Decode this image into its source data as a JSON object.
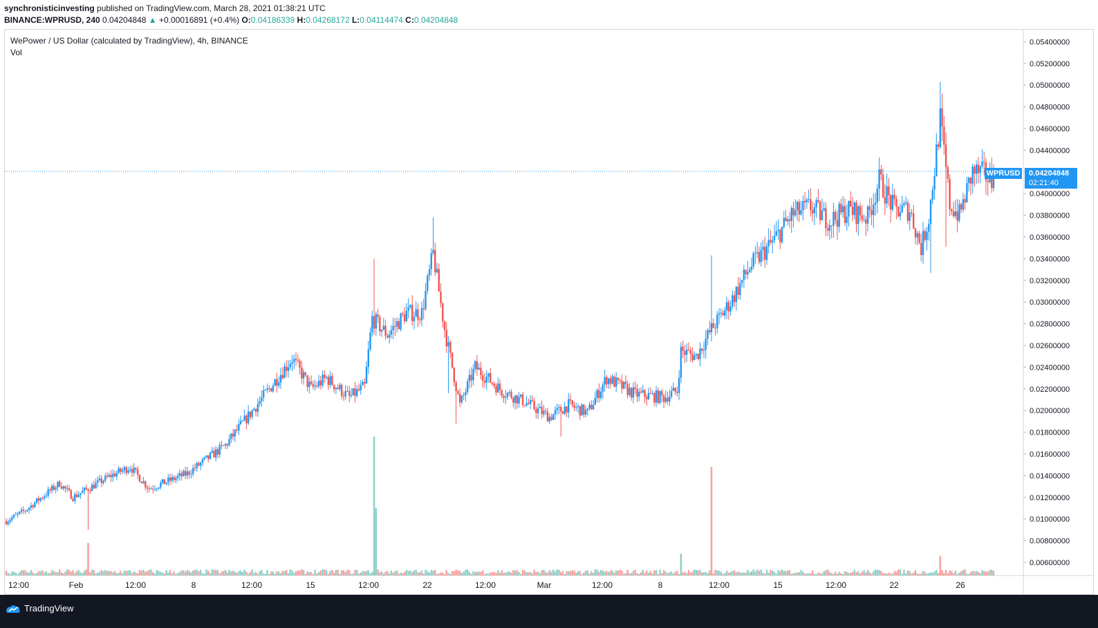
{
  "header": {
    "author": "synchronisticinvesting",
    "published_text": " published on TradingView.com, March 28, 2021 01:38:21 UTC",
    "symbol": "BINANCE:WPRUSD, 240",
    "last": "0.04204848",
    "change": "+0.00016891 (+0.4%)",
    "change_arrow": "▲",
    "o_label": "O:",
    "o_value": "0.04186339",
    "h_label": "H:",
    "h_value": "0.04268172",
    "l_label": "L:",
    "l_value": "0.04114474",
    "c_label": "C:",
    "c_value": "0.04204848"
  },
  "legend": {
    "title": "WePower / US Dollar (calculated by TradingView), 4h, BINANCE",
    "vol": "Vol"
  },
  "price_tag": {
    "symbol": "WPRUSD",
    "price": "0.04204848",
    "countdown": "02:21:40"
  },
  "footer": {
    "brand": "TradingView"
  },
  "colors": {
    "up": "#26a69a",
    "down": "#ef5350",
    "up_vol": "#8fd0c8",
    "down_vol": "#f5a3a1",
    "accent": "#2196f3",
    "bg": "#ffffff",
    "footer_bg": "#131722"
  },
  "icons": {
    "brand_logo": "tradingview-cloud-icon"
  },
  "chart_data": {
    "type": "candlestick",
    "ylim": [
      0.005,
      0.055
    ],
    "y_ticks": [
      "0.05400000",
      "0.05200000",
      "0.05000000",
      "0.04800000",
      "0.04600000",
      "0.04400000",
      "0.04200000",
      "0.04000000",
      "0.03800000",
      "0.03600000",
      "0.03400000",
      "0.03200000",
      "0.03000000",
      "0.02800000",
      "0.02600000",
      "0.02400000",
      "0.02200000",
      "0.02000000",
      "0.01800000",
      "0.01600000",
      "0.01400000",
      "0.01200000",
      "0.01000000",
      "0.00800000",
      "0.00600000"
    ],
    "x_ticks": [
      "12:00",
      "Feb",
      "12:00",
      "8",
      "12:00",
      "15",
      "12:00",
      "22",
      "12:00",
      "Mar",
      "12:00",
      "8",
      "12:00",
      "15",
      "12:00",
      "22",
      "26"
    ],
    "last_price": 0.04204848,
    "anchors": [
      [
        0,
        0.0098
      ],
      [
        10,
        0.0108
      ],
      [
        20,
        0.0122
      ],
      [
        28,
        0.0133
      ],
      [
        35,
        0.012
      ],
      [
        45,
        0.013
      ],
      [
        55,
        0.014
      ],
      [
        65,
        0.0148
      ],
      [
        75,
        0.0128
      ],
      [
        95,
        0.0142
      ],
      [
        115,
        0.0168
      ],
      [
        135,
        0.0213
      ],
      [
        150,
        0.0248
      ],
      [
        160,
        0.022
      ],
      [
        168,
        0.023
      ],
      [
        180,
        0.0212
      ],
      [
        188,
        0.0222
      ],
      [
        192,
        0.0285
      ],
      [
        200,
        0.027
      ],
      [
        210,
        0.029
      ],
      [
        218,
        0.029
      ],
      [
        224,
        0.0345
      ],
      [
        230,
        0.0275
      ],
      [
        238,
        0.0205
      ],
      [
        246,
        0.024
      ],
      [
        260,
        0.0218
      ],
      [
        272,
        0.0208
      ],
      [
        285,
        0.0194
      ],
      [
        295,
        0.0205
      ],
      [
        305,
        0.0198
      ],
      [
        315,
        0.023
      ],
      [
        330,
        0.0215
      ],
      [
        345,
        0.0212
      ],
      [
        352,
        0.0218
      ],
      [
        354,
        0.0255
      ],
      [
        362,
        0.025
      ],
      [
        370,
        0.0275
      ],
      [
        380,
        0.03
      ],
      [
        390,
        0.0332
      ],
      [
        402,
        0.0355
      ],
      [
        412,
        0.038
      ],
      [
        422,
        0.0388
      ],
      [
        432,
        0.0375
      ],
      [
        442,
        0.0385
      ],
      [
        452,
        0.0378
      ],
      [
        458,
        0.0412
      ],
      [
        466,
        0.0385
      ],
      [
        474,
        0.0385
      ],
      [
        480,
        0.035
      ],
      [
        484,
        0.0378
      ],
      [
        490,
        0.0468
      ],
      [
        495,
        0.039
      ],
      [
        500,
        0.038
      ],
      [
        507,
        0.042
      ],
      [
        513,
        0.0418
      ],
      [
        518,
        0.041
      ]
    ],
    "volume_spikes": [
      {
        "x_index": 43,
        "value": 0.0078,
        "dir": "down"
      },
      {
        "x_index": 193,
        "value": 0.0176,
        "dir": "up"
      },
      {
        "x_index": 194,
        "value": 0.011,
        "dir": "up"
      },
      {
        "x_index": 370,
        "value": 0.0148,
        "dir": "down"
      },
      {
        "x_index": 354,
        "value": 0.0068,
        "dir": "up"
      },
      {
        "x_index": 490,
        "value": 0.0066,
        "dir": "down"
      }
    ]
  }
}
